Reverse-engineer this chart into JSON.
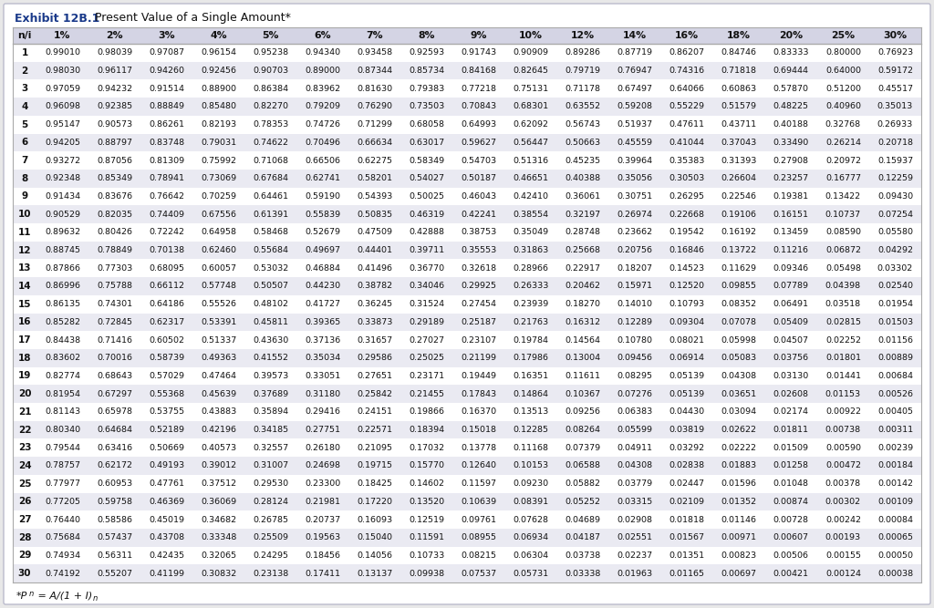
{
  "title": "Exhibit 12B.1",
  "title_suffix": "Present Value of a Single Amount*",
  "footnote_prefix": "*P",
  "footnote_sub": "n",
  "footnote_suffix": " = A/(1 + I)",
  "footnote_sup": "n",
  "columns": [
    "n/i",
    "1%",
    "2%",
    "3%",
    "4%",
    "5%",
    "6%",
    "7%",
    "8%",
    "9%",
    "10%",
    "12%",
    "14%",
    "16%",
    "18%",
    "20%",
    "25%",
    "30%"
  ],
  "rows": [
    [
      1,
      0.9901,
      0.98039,
      0.97087,
      0.96154,
      0.95238,
      0.9434,
      0.93458,
      0.92593,
      0.91743,
      0.90909,
      0.89286,
      0.87719,
      0.86207,
      0.84746,
      0.83333,
      0.8,
      0.76923
    ],
    [
      2,
      0.9803,
      0.96117,
      0.9426,
      0.92456,
      0.90703,
      0.89,
      0.87344,
      0.85734,
      0.84168,
      0.82645,
      0.79719,
      0.76947,
      0.74316,
      0.71818,
      0.69444,
      0.64,
      0.59172
    ],
    [
      3,
      0.97059,
      0.94232,
      0.91514,
      0.889,
      0.86384,
      0.83962,
      0.8163,
      0.79383,
      0.77218,
      0.75131,
      0.71178,
      0.67497,
      0.64066,
      0.60863,
      0.5787,
      0.512,
      0.45517
    ],
    [
      4,
      0.96098,
      0.92385,
      0.88849,
      0.8548,
      0.8227,
      0.79209,
      0.7629,
      0.73503,
      0.70843,
      0.68301,
      0.63552,
      0.59208,
      0.55229,
      0.51579,
      0.48225,
      0.4096,
      0.35013
    ],
    [
      5,
      0.95147,
      0.90573,
      0.86261,
      0.82193,
      0.78353,
      0.74726,
      0.71299,
      0.68058,
      0.64993,
      0.62092,
      0.56743,
      0.51937,
      0.47611,
      0.43711,
      0.40188,
      0.32768,
      0.26933
    ],
    [
      6,
      0.94205,
      0.88797,
      0.83748,
      0.79031,
      0.74622,
      0.70496,
      0.66634,
      0.63017,
      0.59627,
      0.56447,
      0.50663,
      0.45559,
      0.41044,
      0.37043,
      0.3349,
      0.26214,
      0.20718
    ],
    [
      7,
      0.93272,
      0.87056,
      0.81309,
      0.75992,
      0.71068,
      0.66506,
      0.62275,
      0.58349,
      0.54703,
      0.51316,
      0.45235,
      0.39964,
      0.35383,
      0.31393,
      0.27908,
      0.20972,
      0.15937
    ],
    [
      8,
      0.92348,
      0.85349,
      0.78941,
      0.73069,
      0.67684,
      0.62741,
      0.58201,
      0.54027,
      0.50187,
      0.46651,
      0.40388,
      0.35056,
      0.30503,
      0.26604,
      0.23257,
      0.16777,
      0.12259
    ],
    [
      9,
      0.91434,
      0.83676,
      0.76642,
      0.70259,
      0.64461,
      0.5919,
      0.54393,
      0.50025,
      0.46043,
      0.4241,
      0.36061,
      0.30751,
      0.26295,
      0.22546,
      0.19381,
      0.13422,
      0.0943
    ],
    [
      10,
      0.90529,
      0.82035,
      0.74409,
      0.67556,
      0.61391,
      0.55839,
      0.50835,
      0.46319,
      0.42241,
      0.38554,
      0.32197,
      0.26974,
      0.22668,
      0.19106,
      0.16151,
      0.10737,
      0.07254
    ],
    [
      11,
      0.89632,
      0.80426,
      0.72242,
      0.64958,
      0.58468,
      0.52679,
      0.47509,
      0.42888,
      0.38753,
      0.35049,
      0.28748,
      0.23662,
      0.19542,
      0.16192,
      0.13459,
      0.0859,
      0.0558
    ],
    [
      12,
      0.88745,
      0.78849,
      0.70138,
      0.6246,
      0.55684,
      0.49697,
      0.44401,
      0.39711,
      0.35553,
      0.31863,
      0.25668,
      0.20756,
      0.16846,
      0.13722,
      0.11216,
      0.06872,
      0.04292
    ],
    [
      13,
      0.87866,
      0.77303,
      0.68095,
      0.60057,
      0.53032,
      0.46884,
      0.41496,
      0.3677,
      0.32618,
      0.28966,
      0.22917,
      0.18207,
      0.14523,
      0.11629,
      0.09346,
      0.05498,
      0.03302
    ],
    [
      14,
      0.86996,
      0.75788,
      0.66112,
      0.57748,
      0.50507,
      0.4423,
      0.38782,
      0.34046,
      0.29925,
      0.26333,
      0.20462,
      0.15971,
      0.1252,
      0.09855,
      0.07789,
      0.04398,
      0.0254
    ],
    [
      15,
      0.86135,
      0.74301,
      0.64186,
      0.55526,
      0.48102,
      0.41727,
      0.36245,
      0.31524,
      0.27454,
      0.23939,
      0.1827,
      0.1401,
      0.10793,
      0.08352,
      0.06491,
      0.03518,
      0.01954
    ],
    [
      16,
      0.85282,
      0.72845,
      0.62317,
      0.53391,
      0.45811,
      0.39365,
      0.33873,
      0.29189,
      0.25187,
      0.21763,
      0.16312,
      0.12289,
      0.09304,
      0.07078,
      0.05409,
      0.02815,
      0.01503
    ],
    [
      17,
      0.84438,
      0.71416,
      0.60502,
      0.51337,
      0.4363,
      0.37136,
      0.31657,
      0.27027,
      0.23107,
      0.19784,
      0.14564,
      0.1078,
      0.08021,
      0.05998,
      0.04507,
      0.02252,
      0.01156
    ],
    [
      18,
      0.83602,
      0.70016,
      0.58739,
      0.49363,
      0.41552,
      0.35034,
      0.29586,
      0.25025,
      0.21199,
      0.17986,
      0.13004,
      0.09456,
      0.06914,
      0.05083,
      0.03756,
      0.01801,
      0.00889
    ],
    [
      19,
      0.82774,
      0.68643,
      0.57029,
      0.47464,
      0.39573,
      0.33051,
      0.27651,
      0.23171,
      0.19449,
      0.16351,
      0.11611,
      0.08295,
      0.05139,
      0.04308,
      0.0313,
      0.01441,
      0.00684
    ],
    [
      20,
      0.81954,
      0.67297,
      0.55368,
      0.45639,
      0.37689,
      0.3118,
      0.25842,
      0.21455,
      0.17843,
      0.14864,
      0.10367,
      0.07276,
      0.05139,
      0.03651,
      0.02608,
      0.01153,
      0.00526
    ],
    [
      21,
      0.81143,
      0.65978,
      0.53755,
      0.43883,
      0.35894,
      0.29416,
      0.24151,
      0.19866,
      0.1637,
      0.13513,
      0.09256,
      0.06383,
      0.0443,
      0.03094,
      0.02174,
      0.00922,
      0.00405
    ],
    [
      22,
      0.8034,
      0.64684,
      0.52189,
      0.42196,
      0.34185,
      0.27751,
      0.22571,
      0.18394,
      0.15018,
      0.12285,
      0.08264,
      0.05599,
      0.03819,
      0.02622,
      0.01811,
      0.00738,
      0.00311
    ],
    [
      23,
      0.79544,
      0.63416,
      0.50669,
      0.40573,
      0.32557,
      0.2618,
      0.21095,
      0.17032,
      0.13778,
      0.11168,
      0.07379,
      0.04911,
      0.03292,
      0.02222,
      0.01509,
      0.0059,
      0.00239
    ],
    [
      24,
      0.78757,
      0.62172,
      0.49193,
      0.39012,
      0.31007,
      0.24698,
      0.19715,
      0.1577,
      0.1264,
      0.10153,
      0.06588,
      0.04308,
      0.02838,
      0.01883,
      0.01258,
      0.00472,
      0.00184
    ],
    [
      25,
      0.77977,
      0.60953,
      0.47761,
      0.37512,
      0.2953,
      0.233,
      0.18425,
      0.14602,
      0.11597,
      0.0923,
      0.05882,
      0.03779,
      0.02447,
      0.01596,
      0.01048,
      0.00378,
      0.00142
    ],
    [
      26,
      0.77205,
      0.59758,
      0.46369,
      0.36069,
      0.28124,
      0.21981,
      0.1722,
      0.1352,
      0.10639,
      0.08391,
      0.05252,
      0.03315,
      0.02109,
      0.01352,
      0.00874,
      0.00302,
      0.00109
    ],
    [
      27,
      0.7644,
      0.58586,
      0.45019,
      0.34682,
      0.26785,
      0.20737,
      0.16093,
      0.12519,
      0.09761,
      0.07628,
      0.04689,
      0.02908,
      0.01818,
      0.01146,
      0.00728,
      0.00242,
      0.00084
    ],
    [
      28,
      0.75684,
      0.57437,
      0.43708,
      0.33348,
      0.25509,
      0.19563,
      0.1504,
      0.11591,
      0.08955,
      0.06934,
      0.04187,
      0.02551,
      0.01567,
      0.00971,
      0.00607,
      0.00193,
      0.00065
    ],
    [
      29,
      0.74934,
      0.56311,
      0.42435,
      0.32065,
      0.24295,
      0.18456,
      0.14056,
      0.10733,
      0.08215,
      0.06304,
      0.03738,
      0.02237,
      0.01351,
      0.00823,
      0.00506,
      0.00155,
      0.0005
    ],
    [
      30,
      0.74192,
      0.55207,
      0.41199,
      0.30832,
      0.23138,
      0.17411,
      0.13137,
      0.09938,
      0.07537,
      0.05731,
      0.03338,
      0.01963,
      0.01165,
      0.00697,
      0.00421,
      0.00124,
      0.00038
    ]
  ],
  "outer_bg": "#e8e8e8",
  "inner_bg": "#ffffff",
  "header_bg": "#d4d4e4",
  "alt_row_bg": "#eaeaf2",
  "title_color": "#1a3a8a",
  "text_color": "#111111",
  "border_color": "#aaaaaa",
  "title_fontsize": 9.0,
  "header_fontsize": 7.8,
  "data_fontsize": 6.8,
  "row_num_fontsize": 7.5
}
